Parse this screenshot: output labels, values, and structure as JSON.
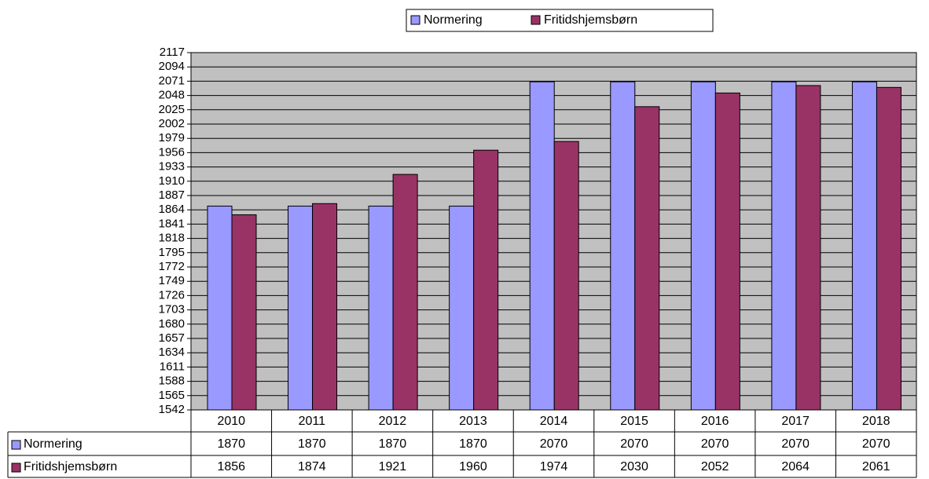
{
  "chart_data": {
    "type": "bar",
    "categories": [
      "2010",
      "2011",
      "2012",
      "2013",
      "2014",
      "2015",
      "2016",
      "2017",
      "2018"
    ],
    "series": [
      {
        "name": "Normering",
        "color": "#9999ff",
        "values": [
          1870,
          1870,
          1870,
          1870,
          2070,
          2070,
          2070,
          2070,
          2070
        ]
      },
      {
        "name": "Fritidshjemsbørn",
        "color": "#993366",
        "values": [
          1856,
          1874,
          1921,
          1960,
          1974,
          2030,
          2052,
          2064,
          2061
        ]
      }
    ],
    "ylim": [
      1542,
      2117
    ],
    "yticks": [
      1542,
      1565,
      1588,
      1611,
      1634,
      1657,
      1680,
      1703,
      1726,
      1749,
      1772,
      1795,
      1818,
      1841,
      1864,
      1887,
      1910,
      1933,
      1956,
      1979,
      2002,
      2025,
      2048,
      2071,
      2094,
      2117
    ],
    "grid": true,
    "legend": "top",
    "plot_background": "#c0c0c0"
  }
}
